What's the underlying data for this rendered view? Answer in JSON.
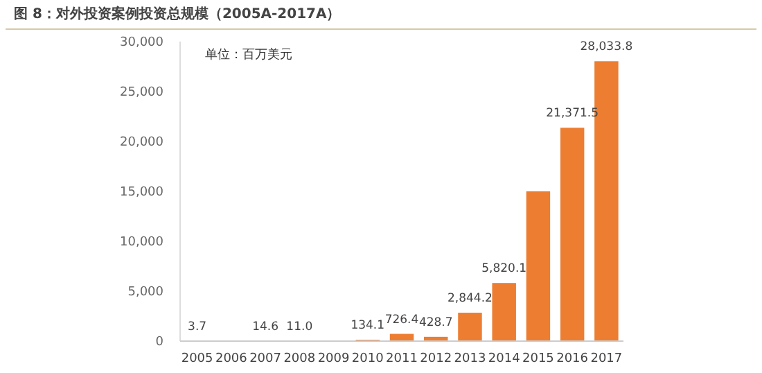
{
  "chart_data": {
    "type": "bar",
    "title": "图 8：对外投资案例投资总规模（2005A-2017A）",
    "annotations": [
      "单位：百万美元"
    ],
    "categories": [
      "2005",
      "2006",
      "2007",
      "2008",
      "2009",
      "2010",
      "2011",
      "2012",
      "2013",
      "2014",
      "2015",
      "2016",
      "2017"
    ],
    "values": [
      3.7,
      null,
      14.6,
      11.0,
      null,
      134.1,
      726.4,
      428.7,
      2844.2,
      5820.1,
      15000,
      21371.5,
      28033.8
    ],
    "value_labels": [
      "3.7",
      null,
      "14.6",
      "11.0",
      null,
      "134.1",
      "726.4",
      "428.7",
      "2,844.2",
      "5,820.1",
      null,
      "21,371.5",
      "28,033.8"
    ],
    "color": "#ed7d31",
    "ylim": [
      0,
      30000
    ],
    "yticks": [
      {
        "value": 0,
        "label": "0"
      },
      {
        "value": 5000,
        "label": "5,000"
      },
      {
        "value": 10000,
        "label": "10,000"
      },
      {
        "value": 15000,
        "label": "15,000"
      },
      {
        "value": 20000,
        "label": "20,000"
      },
      {
        "value": 25000,
        "label": "25,000"
      },
      {
        "value": 30000,
        "label": "30,000"
      }
    ],
    "grid": false
  }
}
